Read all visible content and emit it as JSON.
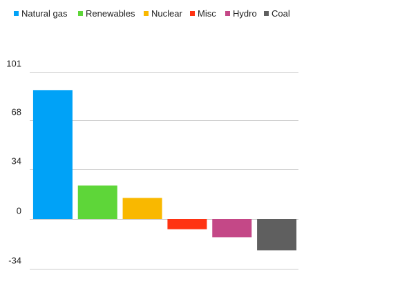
{
  "chart_data": {
    "type": "bar",
    "title": "",
    "xlabel": "",
    "ylabel": "",
    "categories": [
      "Natural gas",
      "Renewables",
      "Nuclear",
      "Misc",
      "Hydro",
      "Coal"
    ],
    "values": [
      88.5,
      23,
      14.5,
      -7,
      -12.5,
      -21.5
    ],
    "colors": [
      "#00a2f7",
      "#5ed639",
      "#f9b800",
      "#ff3312",
      "#c44887",
      "#5f5f5f"
    ],
    "yticks": [
      101,
      68,
      34,
      0,
      -34
    ],
    "ylim": [
      -34,
      101
    ],
    "grid": true,
    "legend": {
      "position": "top-left",
      "entries": [
        "Natural gas",
        "Renewables",
        "Nuclear",
        "Misc",
        "Hydro",
        "Coal"
      ]
    }
  }
}
